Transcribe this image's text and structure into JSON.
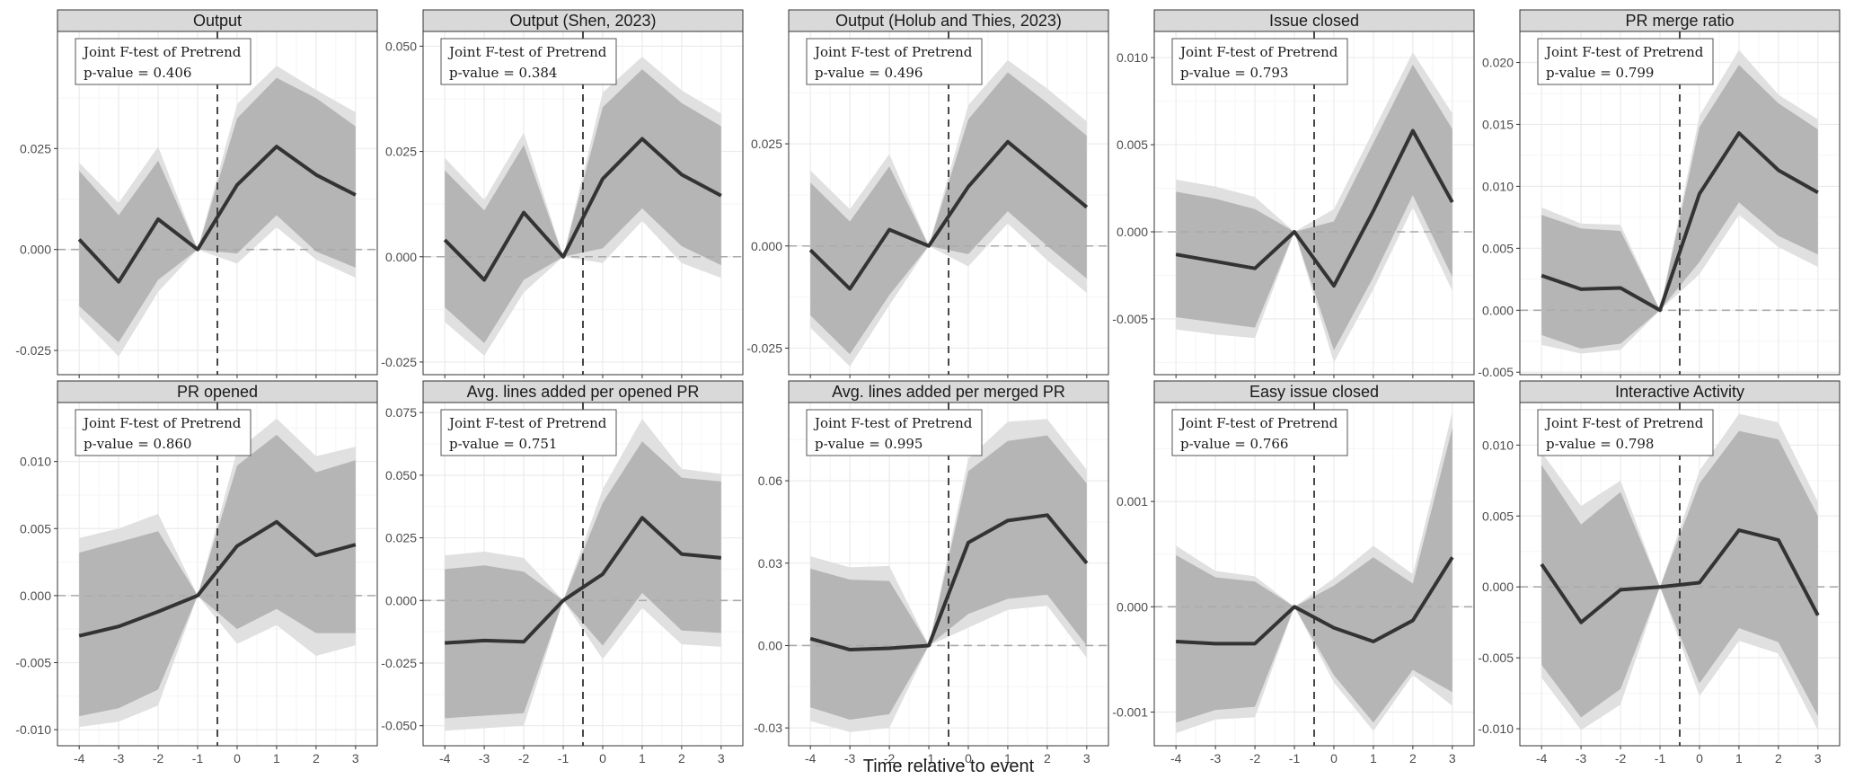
{
  "figure": {
    "xlabel": "Time relative to event",
    "annotation_title": "Joint F-test of Pretrend",
    "pvalue_prefix": "p-value = "
  },
  "chart_data": [
    {
      "type": "line",
      "title": "Output",
      "x": [
        -4,
        -3,
        -2,
        -1,
        0,
        1,
        2,
        3
      ],
      "series": [
        {
          "values": [
            0.0025,
            -0.008,
            0.0075,
            0.0,
            0.016,
            0.0255,
            0.0185,
            0.0135
          ]
        }
      ],
      "ci95": {
        "lower": [
          -0.014,
          -0.023,
          -0.0075,
          0.0,
          -0.001,
          0.0085,
          -0.0005,
          -0.0045
        ],
        "upper": [
          0.0195,
          0.0085,
          0.022,
          0.0,
          0.0325,
          0.0425,
          0.0375,
          0.0305
        ]
      },
      "ci99": {
        "lower": [
          -0.0165,
          -0.0265,
          -0.0105,
          0.0,
          -0.0035,
          0.0055,
          -0.0025,
          -0.007
        ],
        "upper": [
          0.0215,
          0.0115,
          0.0255,
          0.0,
          0.036,
          0.0455,
          0.0395,
          0.034
        ]
      },
      "ylim": [
        -0.031,
        0.054
      ],
      "yticks": [
        -0.025,
        0.0,
        0.025
      ],
      "ytick_labels": [
        "-0.025",
        "0.000",
        "0.025"
      ],
      "pvalue": "0.406",
      "grid": true
    },
    {
      "type": "line",
      "title": "Output (Shen, 2023)",
      "x": [
        -4,
        -3,
        -2,
        -1,
        0,
        1,
        2,
        3
      ],
      "series": [
        {
          "values": [
            0.004,
            -0.0055,
            0.0105,
            0.0,
            0.0185,
            0.028,
            0.0195,
            0.0145
          ]
        }
      ],
      "ci95": {
        "lower": [
          -0.012,
          -0.0205,
          -0.0055,
          0.0,
          0.002,
          0.0115,
          0.0025,
          -0.002
        ],
        "upper": [
          0.0205,
          0.011,
          0.0265,
          0.0,
          0.0355,
          0.0445,
          0.0365,
          0.031
        ]
      },
      "ci99": {
        "lower": [
          -0.0155,
          -0.0235,
          -0.0085,
          0.0,
          -0.0015,
          0.0085,
          -0.0015,
          -0.005
        ],
        "upper": [
          0.0235,
          0.0135,
          0.0295,
          0.0,
          0.039,
          0.0475,
          0.0395,
          0.034
        ]
      },
      "ylim": [
        -0.028,
        0.0535
      ],
      "yticks": [
        -0.025,
        0.0,
        0.025,
        0.05
      ],
      "ytick_labels": [
        "-0.025",
        "0.000",
        "0.025",
        "0.050"
      ],
      "pvalue": "0.384",
      "grid": true
    },
    {
      "type": "line",
      "title": "Output (Holub and Thies, 2023)",
      "x": [
        -4,
        -3,
        -2,
        -1,
        0,
        1,
        2,
        3
      ],
      "series": [
        {
          "values": [
            -0.001,
            -0.0105,
            0.004,
            0.0,
            0.0145,
            0.0255,
            0.0175,
            0.0095
          ]
        }
      ],
      "ci95": {
        "lower": [
          -0.017,
          -0.0265,
          -0.012,
          0.0,
          -0.002,
          0.0085,
          0.0,
          -0.008
        ],
        "upper": [
          0.0155,
          0.006,
          0.0195,
          0.0,
          0.031,
          0.0425,
          0.035,
          0.027
        ]
      },
      "ci99": {
        "lower": [
          -0.02,
          -0.0295,
          -0.0145,
          0.0,
          -0.005,
          0.0055,
          -0.0035,
          -0.0115
        ],
        "upper": [
          0.0185,
          0.009,
          0.0225,
          0.0,
          0.0345,
          0.0455,
          0.0385,
          0.0305
        ]
      },
      "ylim": [
        -0.0315,
        0.0525
      ],
      "yticks": [
        -0.025,
        0.0,
        0.025
      ],
      "ytick_labels": [
        "-0.025",
        "0.000",
        "0.025"
      ],
      "pvalue": "0.496",
      "grid": true
    },
    {
      "type": "line",
      "title": "Issue closed",
      "x": [
        -4,
        -3,
        -2,
        -1,
        0,
        1,
        2,
        3
      ],
      "series": [
        {
          "values": [
            -0.0013,
            -0.0017,
            -0.0021,
            0.0,
            -0.0031,
            0.0012,
            0.0058,
            0.0017
          ]
        }
      ],
      "ci95": {
        "lower": [
          -0.0049,
          -0.0052,
          -0.0055,
          0.0,
          -0.0068,
          -0.0026,
          0.0021,
          -0.0026
        ],
        "upper": [
          0.0023,
          0.0019,
          0.0013,
          0.0,
          0.0006,
          0.0051,
          0.0096,
          0.0059
        ]
      },
      "ci99": {
        "lower": [
          -0.0056,
          -0.0059,
          -0.0061,
          0.0,
          -0.0075,
          -0.0033,
          0.0014,
          -0.0034
        ],
        "upper": [
          0.003,
          0.0026,
          0.002,
          0.0,
          0.0013,
          0.0058,
          0.0103,
          0.0068
        ]
      },
      "ylim": [
        -0.0082,
        0.0115
      ],
      "yticks": [
        -0.005,
        0.0,
        0.005,
        0.01
      ],
      "ytick_labels": [
        "-0.005",
        "0.000",
        "0.005",
        "0.010"
      ],
      "pvalue": "0.793",
      "grid": true
    },
    {
      "type": "line",
      "title": "PR merge ratio",
      "x": [
        -4,
        -3,
        -2,
        -1,
        0,
        1,
        2,
        3
      ],
      "series": [
        {
          "values": [
            0.0028,
            0.0017,
            0.0018,
            0.0,
            0.0094,
            0.0143,
            0.0113,
            0.0095
          ]
        }
      ],
      "ci95": {
        "lower": [
          -0.002,
          -0.0031,
          -0.0027,
          0.0,
          0.0039,
          0.0087,
          0.006,
          0.0045
        ],
        "upper": [
          0.0077,
          0.0066,
          0.0064,
          0.0,
          0.0148,
          0.0198,
          0.0167,
          0.0146
        ]
      },
      "ci99": {
        "lower": [
          -0.0028,
          -0.0035,
          -0.0032,
          0.0,
          0.0029,
          0.0077,
          0.0051,
          0.0035
        ],
        "upper": [
          0.0083,
          0.007,
          0.0069,
          0.0,
          0.0157,
          0.021,
          0.0174,
          0.0154
        ]
      },
      "ylim": [
        -0.0052,
        0.0225
      ],
      "yticks": [
        -0.005,
        0.0,
        0.005,
        0.01,
        0.015,
        0.02
      ],
      "ytick_labels": [
        "-0.005",
        "0.000",
        "0.005",
        "0.010",
        "0.015",
        "0.020"
      ],
      "pvalue": "0.799",
      "grid": true
    },
    {
      "type": "line",
      "title": "PR opened",
      "x": [
        -4,
        -3,
        -2,
        -1,
        0,
        1,
        2,
        3
      ],
      "series": [
        {
          "values": [
            -0.003,
            -0.0023,
            -0.0012,
            0.0,
            0.0037,
            0.0055,
            0.003,
            0.0038
          ]
        }
      ],
      "ci95": {
        "lower": [
          -0.009,
          -0.0084,
          -0.007,
          0.0,
          -0.0025,
          -0.001,
          -0.0028,
          -0.0028
        ],
        "upper": [
          0.0032,
          0.004,
          0.0048,
          0.0,
          0.0097,
          0.012,
          0.0092,
          0.0101
        ]
      },
      "ci99": {
        "lower": [
          -0.0098,
          -0.0094,
          -0.0082,
          0.0,
          -0.0036,
          -0.0022,
          -0.0045,
          -0.0037
        ],
        "upper": [
          0.0043,
          0.005,
          0.0061,
          0.0,
          0.0108,
          0.0132,
          0.0104,
          0.0111
        ]
      },
      "ylim": [
        -0.0112,
        0.0144
      ],
      "yticks": [
        -0.01,
        -0.005,
        0.0,
        0.005,
        0.01
      ],
      "ytick_labels": [
        "-0.010",
        "-0.005",
        "0.000",
        "0.005",
        "0.010"
      ],
      "pvalue": "0.860",
      "grid": true
    },
    {
      "type": "line",
      "title": "Avg. lines added per opened PR",
      "x": [
        -4,
        -3,
        -2,
        -1,
        0,
        1,
        2,
        3
      ],
      "series": [
        {
          "values": [
            -0.017,
            -0.016,
            -0.0165,
            0.0,
            0.0105,
            0.033,
            0.0185,
            0.017
          ]
        }
      ],
      "ci95": {
        "lower": [
          -0.047,
          -0.046,
          -0.045,
          0.0,
          -0.018,
          0.003,
          -0.012,
          -0.013
        ],
        "upper": [
          0.0125,
          0.014,
          0.0115,
          0.0,
          0.039,
          0.0635,
          0.049,
          0.0475
        ]
      },
      "ci99": {
        "lower": [
          -0.052,
          -0.051,
          -0.05,
          0.0,
          -0.0235,
          -0.003,
          -0.0175,
          -0.0185
        ],
        "upper": [
          0.018,
          0.0195,
          0.017,
          0.0,
          0.0445,
          0.0725,
          0.0525,
          0.0505
        ]
      },
      "ylim": [
        -0.058,
        0.079
      ],
      "yticks": [
        -0.05,
        -0.025,
        0.0,
        0.025,
        0.05,
        0.075
      ],
      "ytick_labels": [
        "-0.050",
        "-0.025",
        "0.000",
        "0.025",
        "0.050",
        "0.075"
      ],
      "pvalue": "0.751",
      "grid": true
    },
    {
      "type": "line",
      "title": "Avg. lines added per merged PR",
      "x": [
        -4,
        -3,
        -2,
        -1,
        0,
        1,
        2,
        3
      ],
      "series": [
        {
          "values": [
            0.0025,
            -0.0015,
            -0.001,
            0.0,
            0.0375,
            0.0455,
            0.0475,
            0.03
          ]
        }
      ],
      "ci95": {
        "lower": [
          -0.0225,
          -0.027,
          -0.025,
          0.0,
          0.0115,
          0.017,
          0.0185,
          0.0
        ],
        "upper": [
          0.028,
          0.024,
          0.0235,
          0.0,
          0.0635,
          0.0745,
          0.0765,
          0.059
        ]
      },
      "ci99": {
        "lower": [
          -0.0275,
          -0.0315,
          -0.03,
          0.0,
          0.0065,
          0.013,
          0.0145,
          -0.0045
        ],
        "upper": [
          0.0325,
          0.0285,
          0.029,
          0.0,
          0.068,
          0.0815,
          0.0825,
          0.064
        ]
      },
      "ylim": [
        -0.0365,
        0.0885
      ],
      "yticks": [
        -0.03,
        0.0,
        0.03,
        0.06
      ],
      "ytick_labels": [
        "-0.03",
        "0.00",
        "0.03",
        "0.06"
      ],
      "pvalue": "0.995",
      "grid": true
    },
    {
      "type": "line",
      "title": "Easy issue closed",
      "x": [
        -4,
        -3,
        -2,
        -1,
        0,
        1,
        2,
        3
      ],
      "series": [
        {
          "values": [
            -0.00033,
            -0.00035,
            -0.00035,
            0.0,
            -0.0002,
            -0.00033,
            -0.00013,
            0.00047
          ]
        }
      ],
      "ci95": {
        "lower": [
          -0.0011,
          -0.00098,
          -0.00095,
          0.0,
          -0.00065,
          -0.0011,
          -0.0006,
          -0.00081
        ],
        "upper": [
          0.00049,
          0.00028,
          0.00024,
          0.0,
          0.0002,
          0.00047,
          0.00022,
          0.0017
        ]
      },
      "ci99": {
        "lower": [
          -0.0012,
          -0.00107,
          -0.00105,
          0.0,
          -0.00072,
          -0.00118,
          -0.00065,
          -0.00094
        ],
        "upper": [
          0.00058,
          0.00034,
          0.00029,
          0.0,
          0.00027,
          0.00058,
          0.00031,
          0.00185
        ]
      },
      "ylim": [
        -0.00132,
        0.00194
      ],
      "yticks": [
        -0.001,
        0.0,
        0.001
      ],
      "ytick_labels": [
        "-0.001",
        "0.000",
        "0.001"
      ],
      "pvalue": "0.766",
      "grid": true
    },
    {
      "type": "line",
      "title": "Interactive Activity",
      "x": [
        -4,
        -3,
        -2,
        -1,
        0,
        1,
        2,
        3
      ],
      "series": [
        {
          "values": [
            0.0016,
            -0.0025,
            -0.0002,
            0.0,
            0.0003,
            0.004,
            0.0033,
            -0.002
          ]
        }
      ],
      "ci95": {
        "lower": [
          -0.0055,
          -0.0092,
          -0.0072,
          0.0,
          -0.0068,
          -0.0029,
          -0.0039,
          -0.0091
        ],
        "upper": [
          0.0086,
          0.0044,
          0.0067,
          0.0,
          0.0073,
          0.011,
          0.0104,
          0.005
        ]
      },
      "ci99": {
        "lower": [
          -0.0064,
          -0.0101,
          -0.0083,
          0.0,
          -0.0077,
          -0.0038,
          -0.0047,
          -0.0101
        ],
        "upper": [
          0.0095,
          0.0057,
          0.0075,
          0.0,
          0.0082,
          0.0122,
          0.0116,
          0.006
        ]
      },
      "ylim": [
        -0.0112,
        0.013
      ],
      "yticks": [
        -0.01,
        -0.005,
        0.0,
        0.005,
        0.01
      ],
      "ytick_labels": [
        "-0.010",
        "-0.005",
        "0.000",
        "0.005",
        "0.010"
      ],
      "pvalue": "0.798",
      "grid": true
    }
  ],
  "colors": {
    "strip_bg": "#d9d9d9",
    "ci99": "#e0e0e0",
    "ci95": "#b5b5b5",
    "line": "#333333",
    "grid_major": "#ebebeb",
    "grid_minor": "#f5f5f5",
    "zero_line": "#aaaaaa",
    "event_line": "#333333",
    "panel_border": "#333333"
  }
}
